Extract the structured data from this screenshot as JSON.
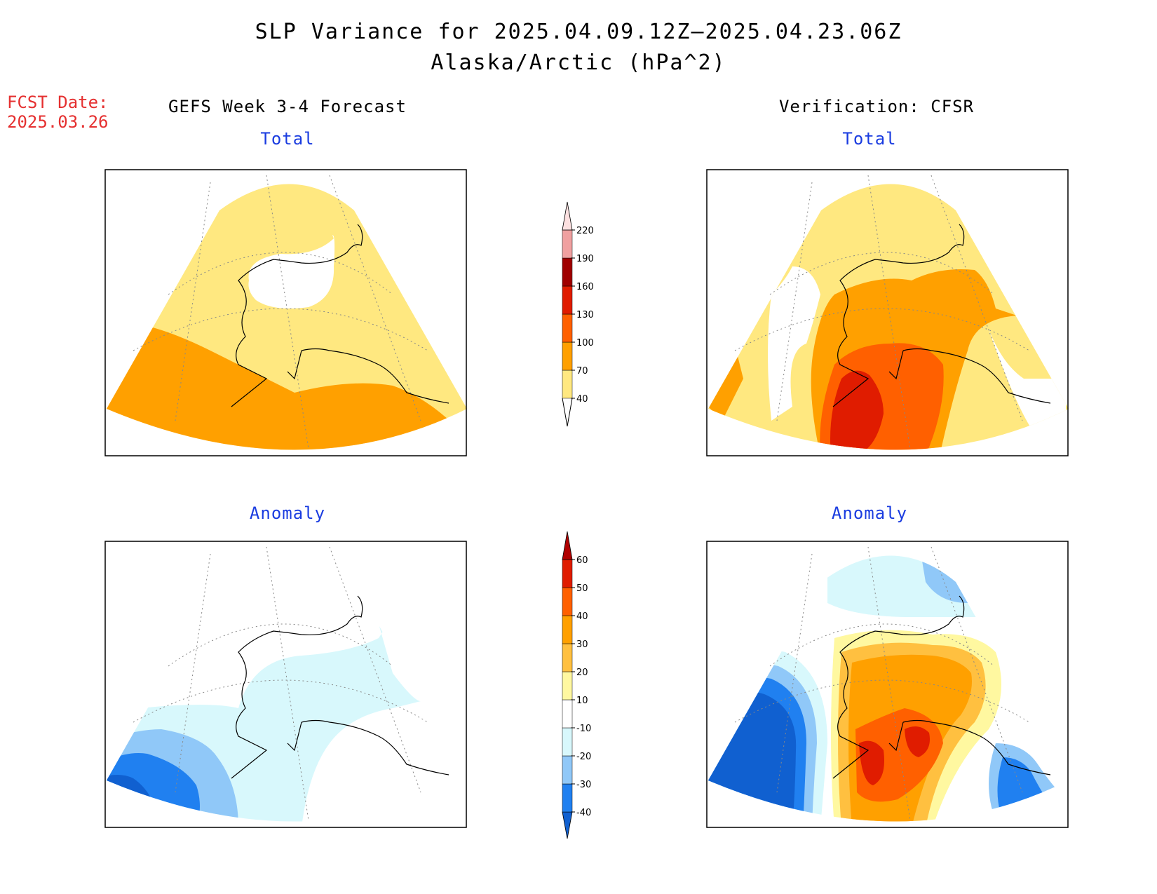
{
  "title_line1": "SLP Variance for 2025.04.09.12Z–2025.04.23.06Z",
  "title_line2": "Alaska/Arctic (hPa^2)",
  "fcst_label": "FCST Date:",
  "fcst_date": "2025.03.26",
  "left_header": "GEFS Week 3-4 Forecast",
  "right_header": "Verification: CFSR",
  "panels": {
    "top_left": "Total",
    "top_right": "Total",
    "bottom_left": "Anomaly",
    "bottom_right": "Anomaly"
  },
  "colorbar_total": {
    "ticks": [
      "40",
      "70",
      "100",
      "130",
      "160",
      "190",
      "220"
    ],
    "colors": [
      "#ffe880",
      "#ffa000",
      "#ff6000",
      "#e01c00",
      "#a00000",
      "#f0a0a0",
      "#fce0e0"
    ]
  },
  "colorbar_anomaly": {
    "ticks": [
      "-40",
      "-30",
      "-20",
      "-10",
      "10",
      "20",
      "30",
      "40",
      "50",
      "60"
    ],
    "colors": [
      "#1060d0",
      "#2080f0",
      "#90c8f8",
      "#d8f8fc",
      "#ffffff",
      "#fff8a0",
      "#ffc040",
      "#ffa000",
      "#ff6000",
      "#e01c00",
      "#b00000"
    ]
  }
}
